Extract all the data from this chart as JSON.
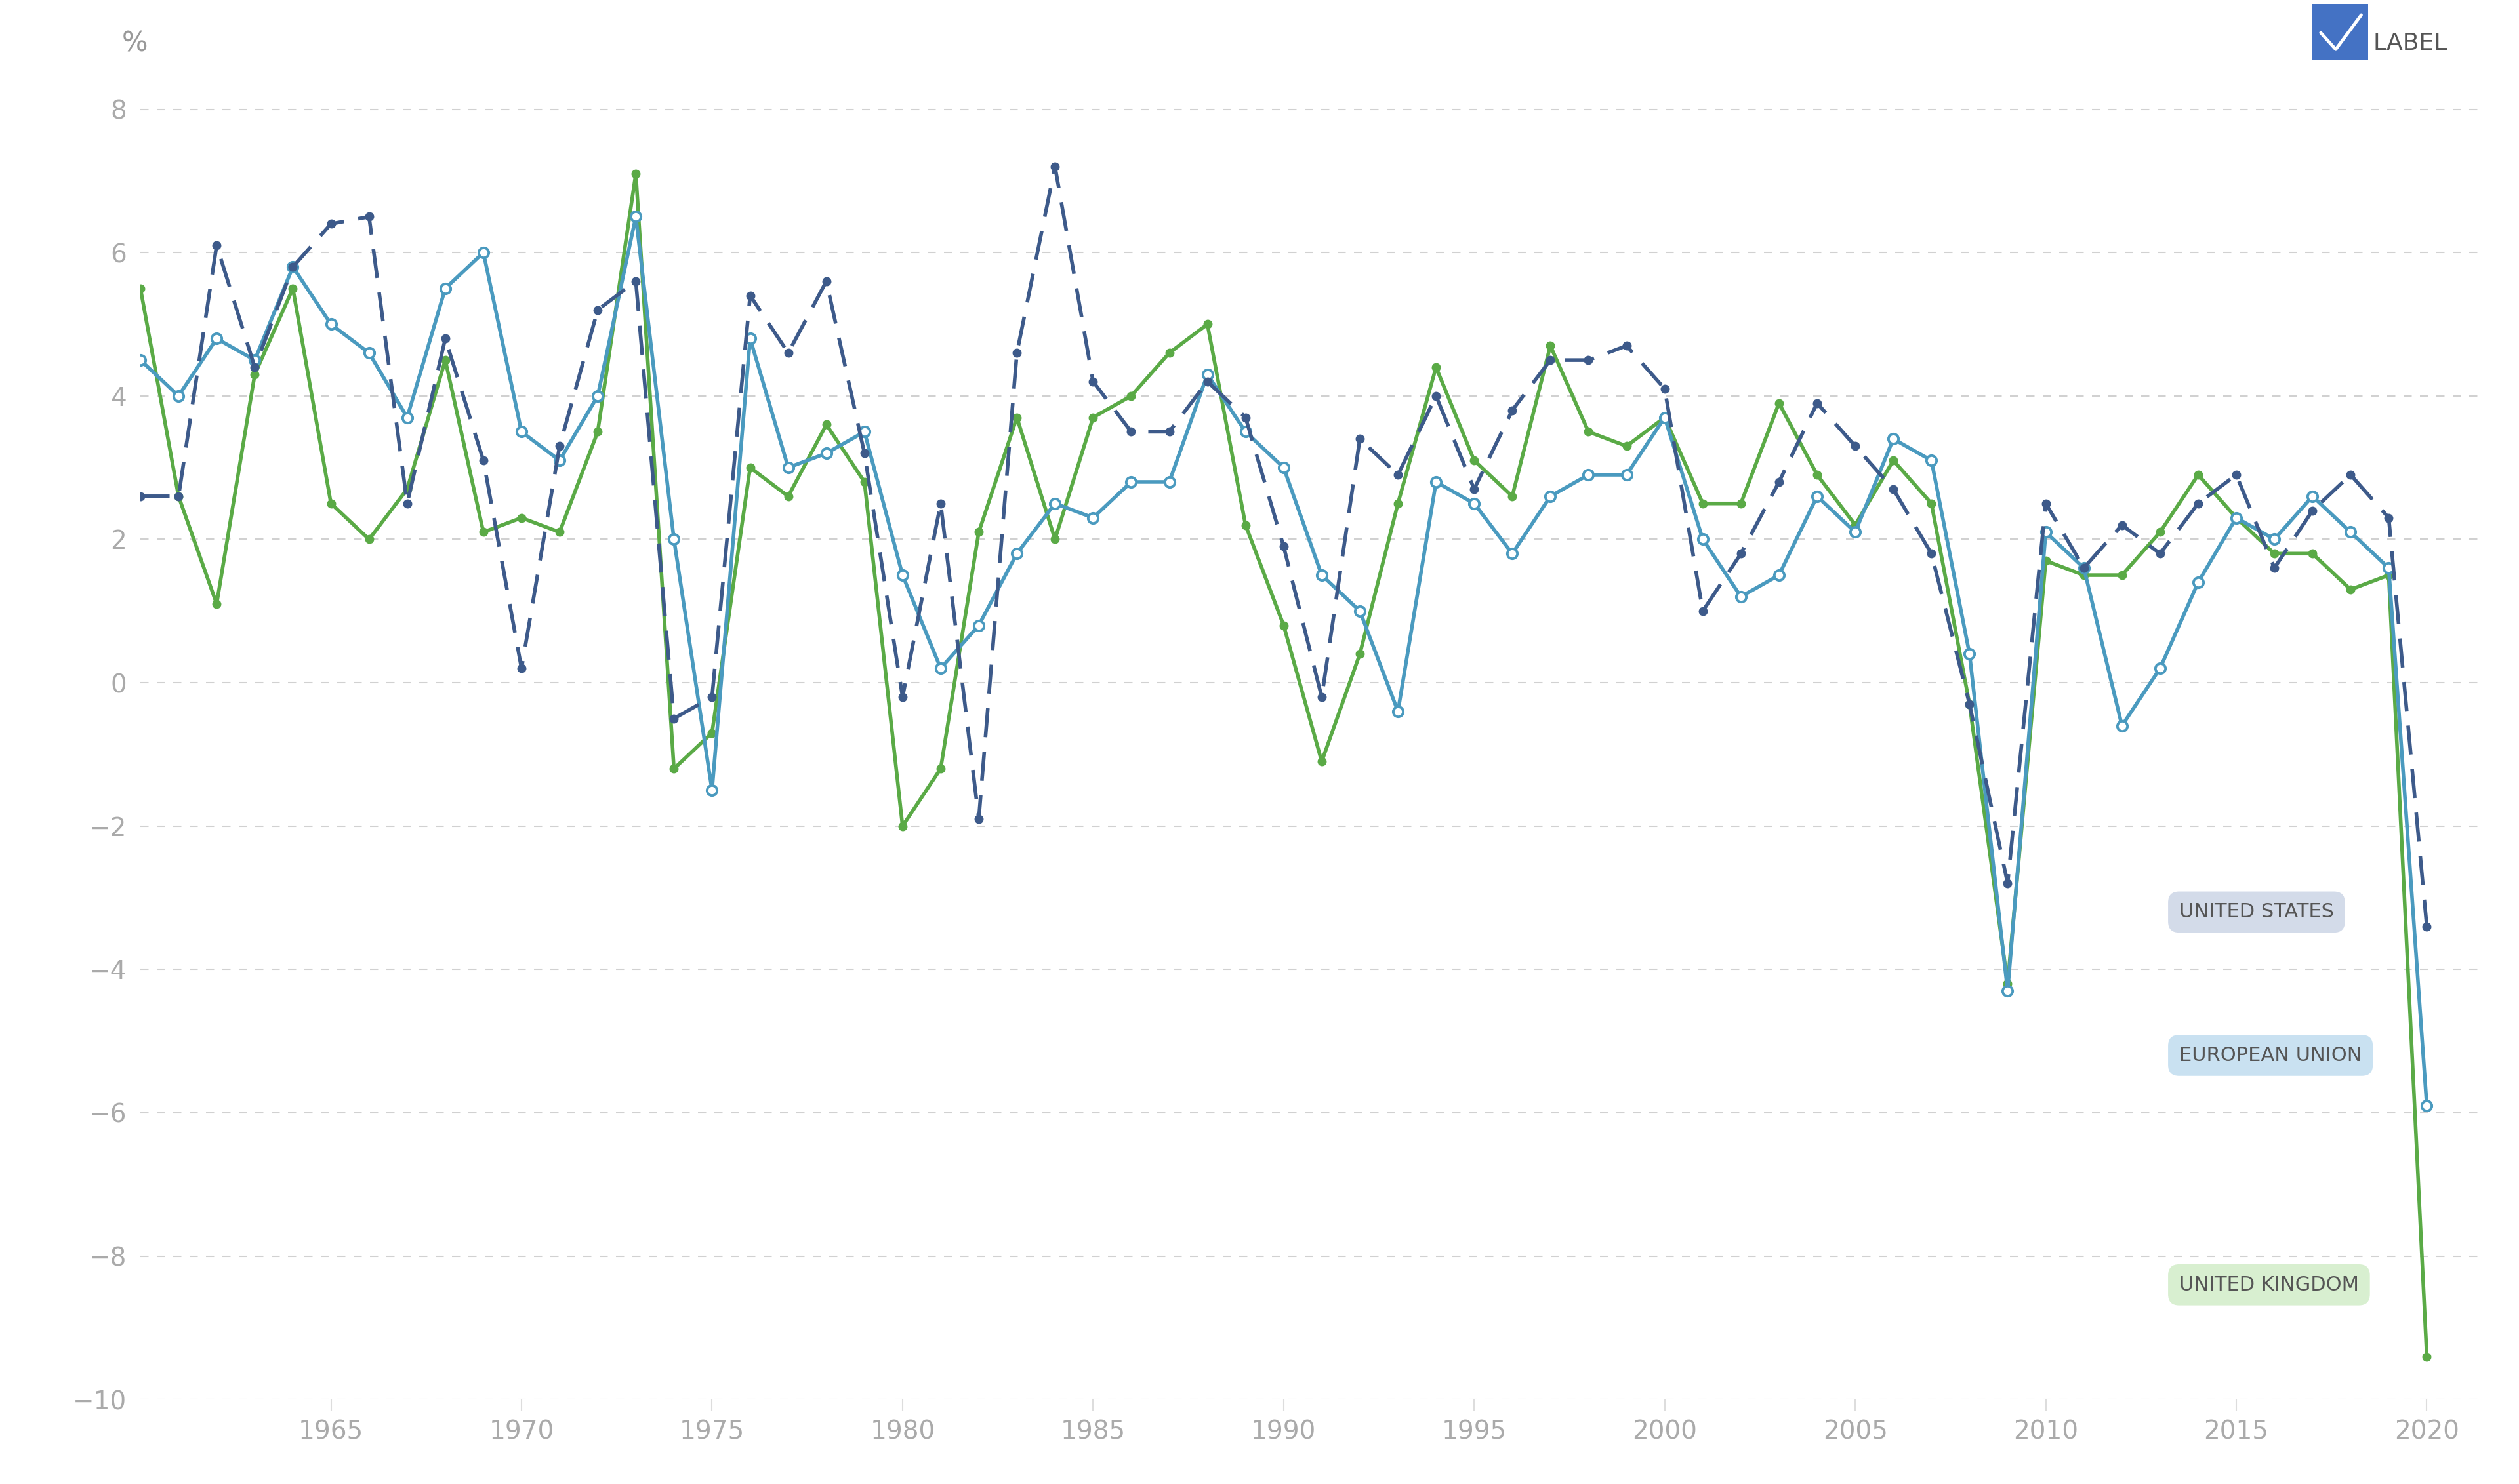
{
  "years": [
    1960,
    1961,
    1962,
    1963,
    1964,
    1965,
    1966,
    1967,
    1968,
    1969,
    1970,
    1971,
    1972,
    1973,
    1974,
    1975,
    1976,
    1977,
    1978,
    1979,
    1980,
    1981,
    1982,
    1983,
    1984,
    1985,
    1986,
    1987,
    1988,
    1989,
    1990,
    1991,
    1992,
    1993,
    1994,
    1995,
    1996,
    1997,
    1998,
    1999,
    2000,
    2001,
    2002,
    2003,
    2004,
    2005,
    2006,
    2007,
    2008,
    2009,
    2010,
    2011,
    2012,
    2013,
    2014,
    2015,
    2016,
    2017,
    2018,
    2019,
    2020
  ],
  "us_data": [
    2.6,
    2.6,
    6.1,
    4.4,
    5.8,
    6.4,
    6.5,
    2.5,
    4.8,
    3.1,
    0.2,
    3.3,
    5.2,
    5.6,
    -0.5,
    -0.2,
    5.4,
    4.6,
    5.6,
    3.2,
    -0.2,
    2.5,
    -1.9,
    4.6,
    7.2,
    4.2,
    3.5,
    3.5,
    4.2,
    3.7,
    1.9,
    -0.2,
    3.4,
    2.9,
    4.0,
    2.7,
    3.8,
    4.5,
    4.5,
    4.7,
    4.1,
    1.0,
    1.8,
    2.8,
    3.9,
    3.3,
    2.7,
    1.8,
    -0.3,
    -2.8,
    2.5,
    1.6,
    2.2,
    1.8,
    2.5,
    2.9,
    1.6,
    2.4,
    2.9,
    2.3,
    -3.4
  ],
  "eu_data": [
    4.5,
    4.0,
    4.8,
    4.5,
    5.8,
    5.0,
    4.6,
    3.7,
    5.5,
    6.0,
    3.5,
    3.1,
    4.0,
    6.5,
    2.0,
    -1.5,
    4.8,
    3.0,
    3.2,
    3.5,
    1.5,
    0.2,
    0.8,
    1.8,
    2.5,
    2.3,
    2.8,
    2.8,
    4.3,
    3.5,
    3.0,
    1.5,
    1.0,
    -0.4,
    2.8,
    2.5,
    1.8,
    2.6,
    2.9,
    2.9,
    3.7,
    2.0,
    1.2,
    1.5,
    2.6,
    2.1,
    3.4,
    3.1,
    0.4,
    -4.3,
    2.1,
    1.6,
    -0.6,
    0.2,
    1.4,
    2.3,
    2.0,
    2.6,
    2.1,
    1.6,
    -5.9
  ],
  "uk_data": [
    5.5,
    2.6,
    1.1,
    4.3,
    5.5,
    2.5,
    2.0,
    2.7,
    4.5,
    2.1,
    2.3,
    2.1,
    3.5,
    7.1,
    -1.2,
    -0.7,
    3.0,
    2.6,
    3.6,
    2.8,
    -2.0,
    -1.2,
    2.1,
    3.7,
    2.0,
    3.7,
    4.0,
    4.6,
    5.0,
    2.2,
    0.8,
    -1.1,
    0.4,
    2.5,
    4.4,
    3.1,
    2.6,
    4.7,
    3.5,
    3.3,
    3.7,
    2.5,
    2.5,
    3.9,
    2.9,
    2.2,
    3.1,
    2.5,
    -0.3,
    -4.2,
    1.7,
    1.5,
    1.5,
    2.1,
    2.9,
    2.3,
    1.8,
    1.8,
    1.3,
    1.5,
    -9.4
  ],
  "us_color": "#3d5a8a",
  "eu_color": "#4a9abf",
  "uk_color": "#5aaa46",
  "us_label_color": "#d0d8e8",
  "eu_label_color": "#c5dff0",
  "uk_label_color": "#d5eecc",
  "ylim": [
    -10,
    8.5
  ],
  "yticks": [
    -10,
    -8,
    -6,
    -4,
    -2,
    0,
    2,
    4,
    6,
    8
  ],
  "grid_color": "#cccccc",
  "tick_color": "#aaaaaa",
  "label_text": "LABEL",
  "xlim_left": 1960,
  "xlim_right": 2021.5,
  "xtick_positions": [
    1965,
    1970,
    1975,
    1980,
    1985,
    1990,
    1995,
    2000,
    2005,
    2010,
    2015,
    2020
  ]
}
